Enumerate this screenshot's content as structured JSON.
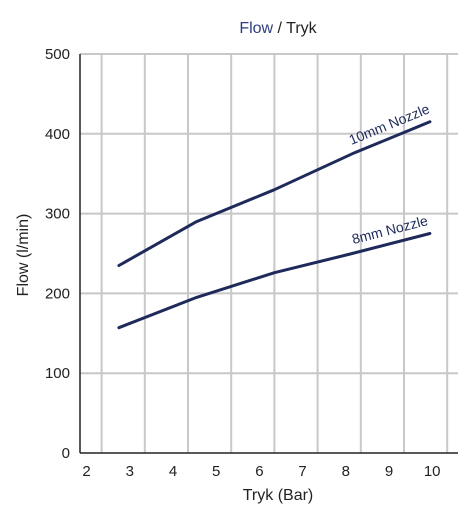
{
  "chart_data": {
    "type": "line",
    "title_parts": [
      {
        "text": "Flow",
        "color": "#2e3d7c"
      },
      {
        "text": " / ",
        "color": "#222222"
      },
      {
        "text": "Tryk",
        "color": "#222222"
      }
    ],
    "xlabel": "Tryk (Bar)",
    "ylabel": "Flow (l/min)",
    "xlim": [
      1.5,
      10.25
    ],
    "ylim": [
      0,
      500
    ],
    "x_ticks": [
      "2",
      "3",
      "4",
      "5",
      "6",
      "7",
      "8",
      "9",
      "10"
    ],
    "y_ticks": [
      "0",
      "100",
      "200",
      "300",
      "400",
      "500"
    ],
    "grid": true,
    "line_color": "#1e2a5a",
    "grid_color": "#c8c8c8",
    "series": [
      {
        "name": "10mm Nozzle",
        "x": [
          2.4,
          4.2,
          6.0,
          7.8,
          9.6
        ],
        "y": [
          235,
          290,
          330,
          375,
          415
        ]
      },
      {
        "name": "8mm Nozzle",
        "x": [
          2.4,
          4.2,
          6.0,
          7.8,
          9.6
        ],
        "y": [
          157,
          195,
          226,
          250,
          275
        ]
      }
    ]
  }
}
